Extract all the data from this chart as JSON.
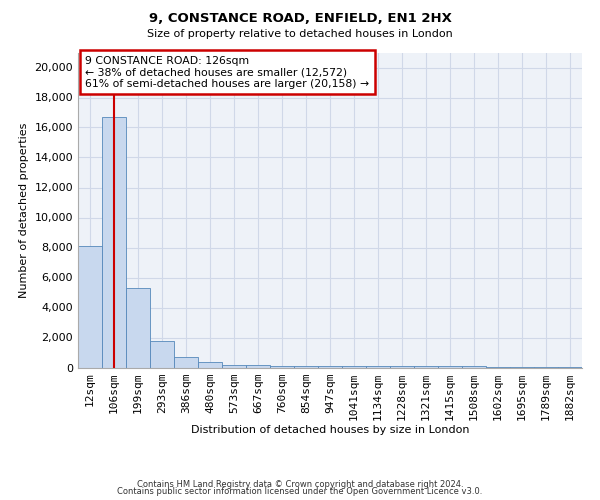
{
  "title1": "9, CONSTANCE ROAD, ENFIELD, EN1 2HX",
  "title2": "Size of property relative to detached houses in London",
  "xlabel": "Distribution of detached houses by size in London",
  "ylabel": "Number of detached properties",
  "categories": [
    "12sqm",
    "106sqm",
    "199sqm",
    "293sqm",
    "386sqm",
    "480sqm",
    "573sqm",
    "667sqm",
    "760sqm",
    "854sqm",
    "947sqm",
    "1041sqm",
    "1134sqm",
    "1228sqm",
    "1321sqm",
    "1415sqm",
    "1508sqm",
    "1602sqm",
    "1695sqm",
    "1789sqm",
    "1882sqm"
  ],
  "values": [
    8100,
    16700,
    5300,
    1800,
    700,
    350,
    200,
    150,
    130,
    115,
    105,
    95,
    90,
    85,
    80,
    75,
    70,
    65,
    60,
    55,
    50
  ],
  "bar_color": "#c8d8ee",
  "bar_edge_color": "#5588bb",
  "background_color": "#eef2f8",
  "grid_color": "#d0d8e8",
  "fig_background": "#ffffff",
  "red_line_x": 1,
  "annotation_text": "9 CONSTANCE ROAD: 126sqm\n← 38% of detached houses are smaller (12,572)\n61% of semi-detached houses are larger (20,158) →",
  "annotation_box_color": "#ffffff",
  "annotation_border_color": "#cc0000",
  "ylim": [
    0,
    21000
  ],
  "yticks": [
    0,
    2000,
    4000,
    6000,
    8000,
    10000,
    12000,
    14000,
    16000,
    18000,
    20000
  ],
  "footer1": "Contains HM Land Registry data © Crown copyright and database right 2024.",
  "footer2": "Contains public sector information licensed under the Open Government Licence v3.0."
}
